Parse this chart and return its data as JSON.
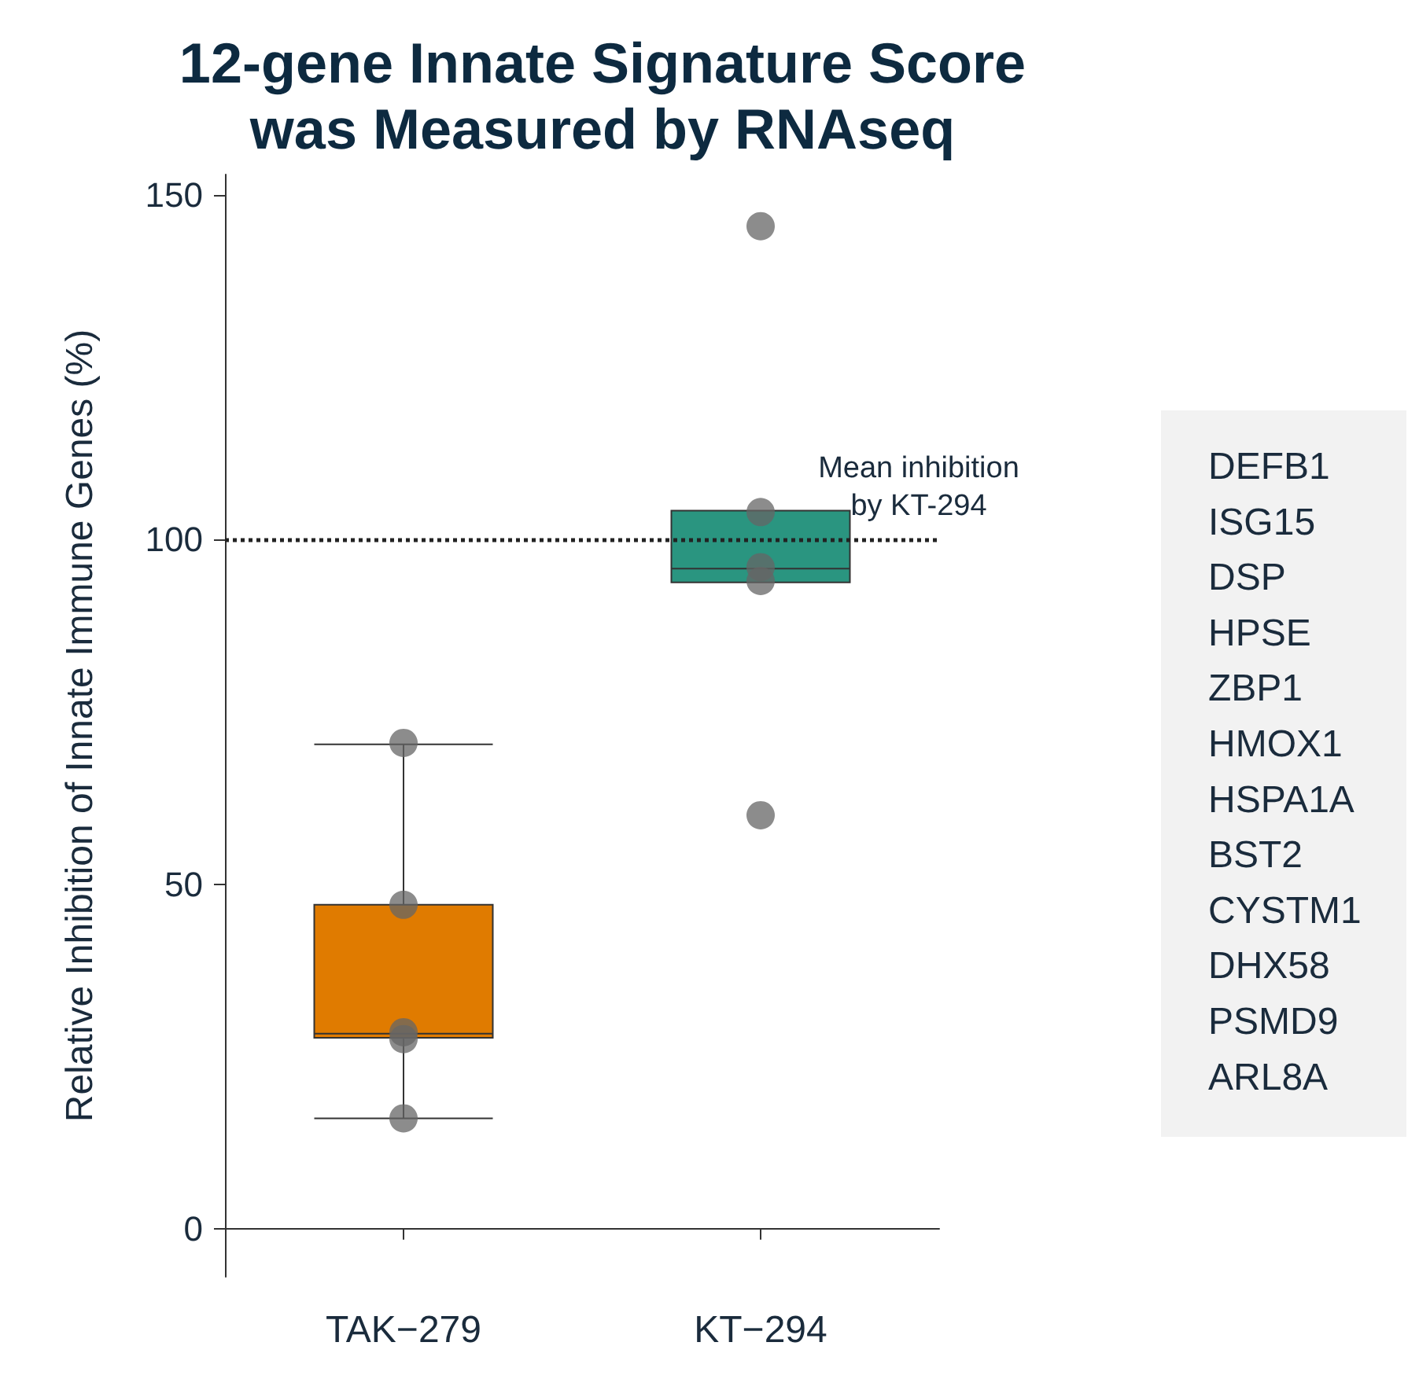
{
  "chart_data": {
    "type": "box",
    "title": "12-gene Innate Signature Score\nwas Measured by RNAseq",
    "ylabel": "Relative Inhibition of Innate Immune Genes (%)",
    "categories": [
      "TAK−279",
      "KT−294"
    ],
    "colors": [
      "#e07b00",
      "#2a9580"
    ],
    "boxes": [
      {
        "low": 16,
        "q1": 27.7,
        "median": 28.3,
        "q3": 47,
        "high": 70.3
      },
      {
        "low": 93.8,
        "q1": 93.8,
        "median": 95.8,
        "q3": 104.2,
        "high": 104.2
      }
    ],
    "series": [
      {
        "type": "scatter",
        "color": "#666666",
        "x": [
          "TAK−279",
          "TAK−279",
          "TAK−279",
          "TAK−279",
          "TAK−279",
          "KT−294",
          "KT−294",
          "KT−294",
          "KT−294",
          "KT−294"
        ],
        "values": [
          70.5,
          47,
          28.5,
          27.5,
          16,
          145.5,
          104,
          96,
          94,
          60
        ]
      }
    ],
    "ylim": [
      -7,
      153
    ],
    "yticks": [
      0,
      50,
      100,
      150
    ],
    "grid": false,
    "ref_lines": [
      {
        "axis": "y",
        "value": 100,
        "label": "Mean inhibition\nby KT-294",
        "line_style": "dotted",
        "color": "#222222"
      }
    ],
    "annotations": [
      "DEFB1",
      "ISG15",
      "DSP",
      "HPSE",
      "ZBP1",
      "HMOX1",
      "HSPA1A",
      "BST2",
      "CYSTM1",
      "DHX58",
      "PSMD9",
      "ARL8A"
    ]
  }
}
